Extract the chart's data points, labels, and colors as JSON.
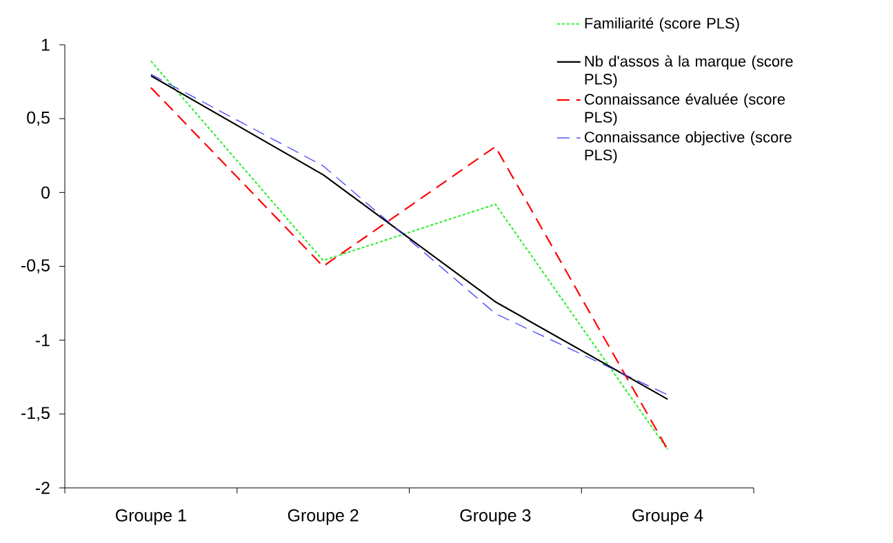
{
  "chart_data": {
    "type": "line",
    "categories": [
      "Groupe 1",
      "Groupe 2",
      "Groupe 3",
      "Groupe 4"
    ],
    "series": [
      {
        "name": "Familiarité (score PLS)",
        "color": "#33ee33",
        "line_style": "dotted",
        "values": [
          0.89,
          -0.46,
          -0.08,
          -1.74
        ]
      },
      {
        "name": "Nb d'assos à la marque (score PLS)",
        "color": "#000000",
        "line_style": "solid",
        "values": [
          0.79,
          0.12,
          -0.74,
          -1.4
        ]
      },
      {
        "name": "Connaissance évaluée (score PLS)",
        "color": "#ff0000",
        "line_style": "dashed",
        "values": [
          0.71,
          -0.5,
          0.31,
          -1.74
        ]
      },
      {
        "name": "Connaissance objective (score PLS)",
        "color": "#3333ff",
        "line_style": "dashed",
        "values": [
          0.8,
          0.18,
          -0.82,
          -1.37
        ]
      }
    ],
    "ylim": [
      -2,
      1
    ],
    "yticks": [
      {
        "value": -2,
        "label": "-2"
      },
      {
        "value": -1.5,
        "label": "-1,5"
      },
      {
        "value": -1,
        "label": "-1"
      },
      {
        "value": -0.5,
        "label": "-0,5"
      },
      {
        "value": 0,
        "label": "0"
      },
      {
        "value": 0.5,
        "label": "0,5"
      },
      {
        "value": 1,
        "label": "1"
      }
    ],
    "grid": false,
    "legend": "top right",
    "marker": "none"
  }
}
